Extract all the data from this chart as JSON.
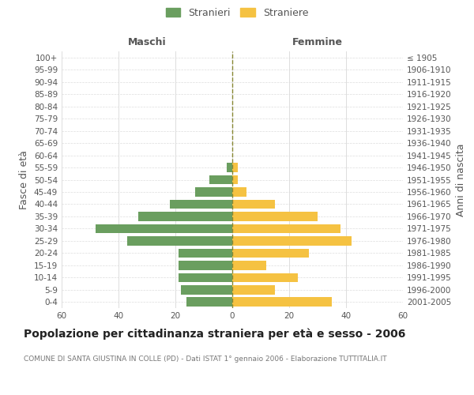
{
  "age_groups": [
    "0-4",
    "5-9",
    "10-14",
    "15-19",
    "20-24",
    "25-29",
    "30-34",
    "35-39",
    "40-44",
    "45-49",
    "50-54",
    "55-59",
    "60-64",
    "65-69",
    "70-74",
    "75-79",
    "80-84",
    "85-89",
    "90-94",
    "95-99",
    "100+"
  ],
  "birth_years": [
    "2001-2005",
    "1996-2000",
    "1991-1995",
    "1986-1990",
    "1981-1985",
    "1976-1980",
    "1971-1975",
    "1966-1970",
    "1961-1965",
    "1956-1960",
    "1951-1955",
    "1946-1950",
    "1941-1945",
    "1936-1940",
    "1931-1935",
    "1926-1930",
    "1921-1925",
    "1916-1920",
    "1911-1915",
    "1906-1910",
    "≤ 1905"
  ],
  "males": [
    16,
    18,
    19,
    19,
    19,
    37,
    48,
    33,
    22,
    13,
    8,
    2,
    0,
    0,
    0,
    0,
    0,
    0,
    0,
    0,
    0
  ],
  "females": [
    35,
    15,
    23,
    12,
    27,
    42,
    38,
    30,
    15,
    5,
    2,
    2,
    0,
    0,
    0,
    0,
    0,
    0,
    0,
    0,
    0
  ],
  "male_color": "#6a9e5f",
  "female_color": "#f5c242",
  "title": "Popolazione per cittadinanza straniera per età e sesso - 2006",
  "subtitle": "COMUNE DI SANTA GIUSTINA IN COLLE (PD) - Dati ISTAT 1° gennaio 2006 - Elaborazione TUTTITALIA.IT",
  "ylabel_left": "Fasce di età",
  "ylabel_right": "Anni di nascita",
  "xlabel_left": "Maschi",
  "xlabel_right": "Femmine",
  "legend_male": "Stranieri",
  "legend_female": "Straniere",
  "xlim": 60,
  "bg_color": "#ffffff",
  "grid_color": "#dddddd",
  "bar_height": 0.75,
  "center_line_color": "#888833",
  "title_fontsize": 10,
  "subtitle_fontsize": 6.5,
  "tick_fontsize": 7.5,
  "label_fontsize": 9
}
